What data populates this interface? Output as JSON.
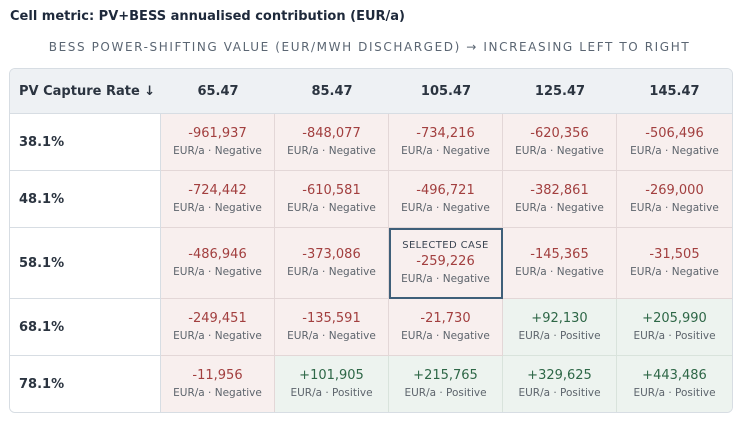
{
  "metric_label": "Cell metric: PV+BESS annualised contribution (EUR/a)",
  "subtitle": "BESS POWER-SHIFTING VALUE (EUR/MWH DISCHARGED) → INCREASING LEFT TO RIGHT",
  "row_header": "PV Capture Rate ↓",
  "columns": [
    "65.47",
    "85.47",
    "105.47",
    "125.47",
    "145.47"
  ],
  "selected_badge": "SELECTED CASE",
  "rows": [
    {
      "label": "38.1%",
      "cells": [
        {
          "value": "-961,937",
          "caption": "EUR/a · Negative",
          "sign": "neg"
        },
        {
          "value": "-848,077",
          "caption": "EUR/a · Negative",
          "sign": "neg"
        },
        {
          "value": "-734,216",
          "caption": "EUR/a · Negative",
          "sign": "neg"
        },
        {
          "value": "-620,356",
          "caption": "EUR/a · Negative",
          "sign": "neg"
        },
        {
          "value": "-506,496",
          "caption": "EUR/a · Negative",
          "sign": "neg"
        }
      ]
    },
    {
      "label": "48.1%",
      "cells": [
        {
          "value": "-724,442",
          "caption": "EUR/a · Negative",
          "sign": "neg"
        },
        {
          "value": "-610,581",
          "caption": "EUR/a · Negative",
          "sign": "neg"
        },
        {
          "value": "-496,721",
          "caption": "EUR/a · Negative",
          "sign": "neg"
        },
        {
          "value": "-382,861",
          "caption": "EUR/a · Negative",
          "sign": "neg"
        },
        {
          "value": "-269,000",
          "caption": "EUR/a · Negative",
          "sign": "neg"
        }
      ]
    },
    {
      "label": "58.1%",
      "cells": [
        {
          "value": "-486,946",
          "caption": "EUR/a · Negative",
          "sign": "neg"
        },
        {
          "value": "-373,086",
          "caption": "EUR/a · Negative",
          "sign": "neg"
        },
        {
          "value": "-259,226",
          "caption": "EUR/a · Negative",
          "sign": "neg",
          "selected": true
        },
        {
          "value": "-145,365",
          "caption": "EUR/a · Negative",
          "sign": "neg"
        },
        {
          "value": "-31,505",
          "caption": "EUR/a · Negative",
          "sign": "neg"
        }
      ]
    },
    {
      "label": "68.1%",
      "cells": [
        {
          "value": "-249,451",
          "caption": "EUR/a · Negative",
          "sign": "neg"
        },
        {
          "value": "-135,591",
          "caption": "EUR/a · Negative",
          "sign": "neg"
        },
        {
          "value": "-21,730",
          "caption": "EUR/a · Negative",
          "sign": "neg"
        },
        {
          "value": "+92,130",
          "caption": "EUR/a · Positive",
          "sign": "pos"
        },
        {
          "value": "+205,990",
          "caption": "EUR/a · Positive",
          "sign": "pos"
        }
      ]
    },
    {
      "label": "78.1%",
      "cells": [
        {
          "value": "-11,956",
          "caption": "EUR/a · Negative",
          "sign": "neg"
        },
        {
          "value": "+101,905",
          "caption": "EUR/a · Positive",
          "sign": "pos"
        },
        {
          "value": "+215,765",
          "caption": "EUR/a · Positive",
          "sign": "pos"
        },
        {
          "value": "+329,625",
          "caption": "EUR/a · Positive",
          "sign": "pos"
        },
        {
          "value": "+443,486",
          "caption": "EUR/a · Positive",
          "sign": "pos"
        }
      ]
    }
  ],
  "colors": {
    "negative_bg": "#f8efee",
    "positive_bg": "#edf3ef",
    "negative_text": "#a23f3f",
    "positive_text": "#2e6747",
    "selected_border": "#3f5f79"
  }
}
